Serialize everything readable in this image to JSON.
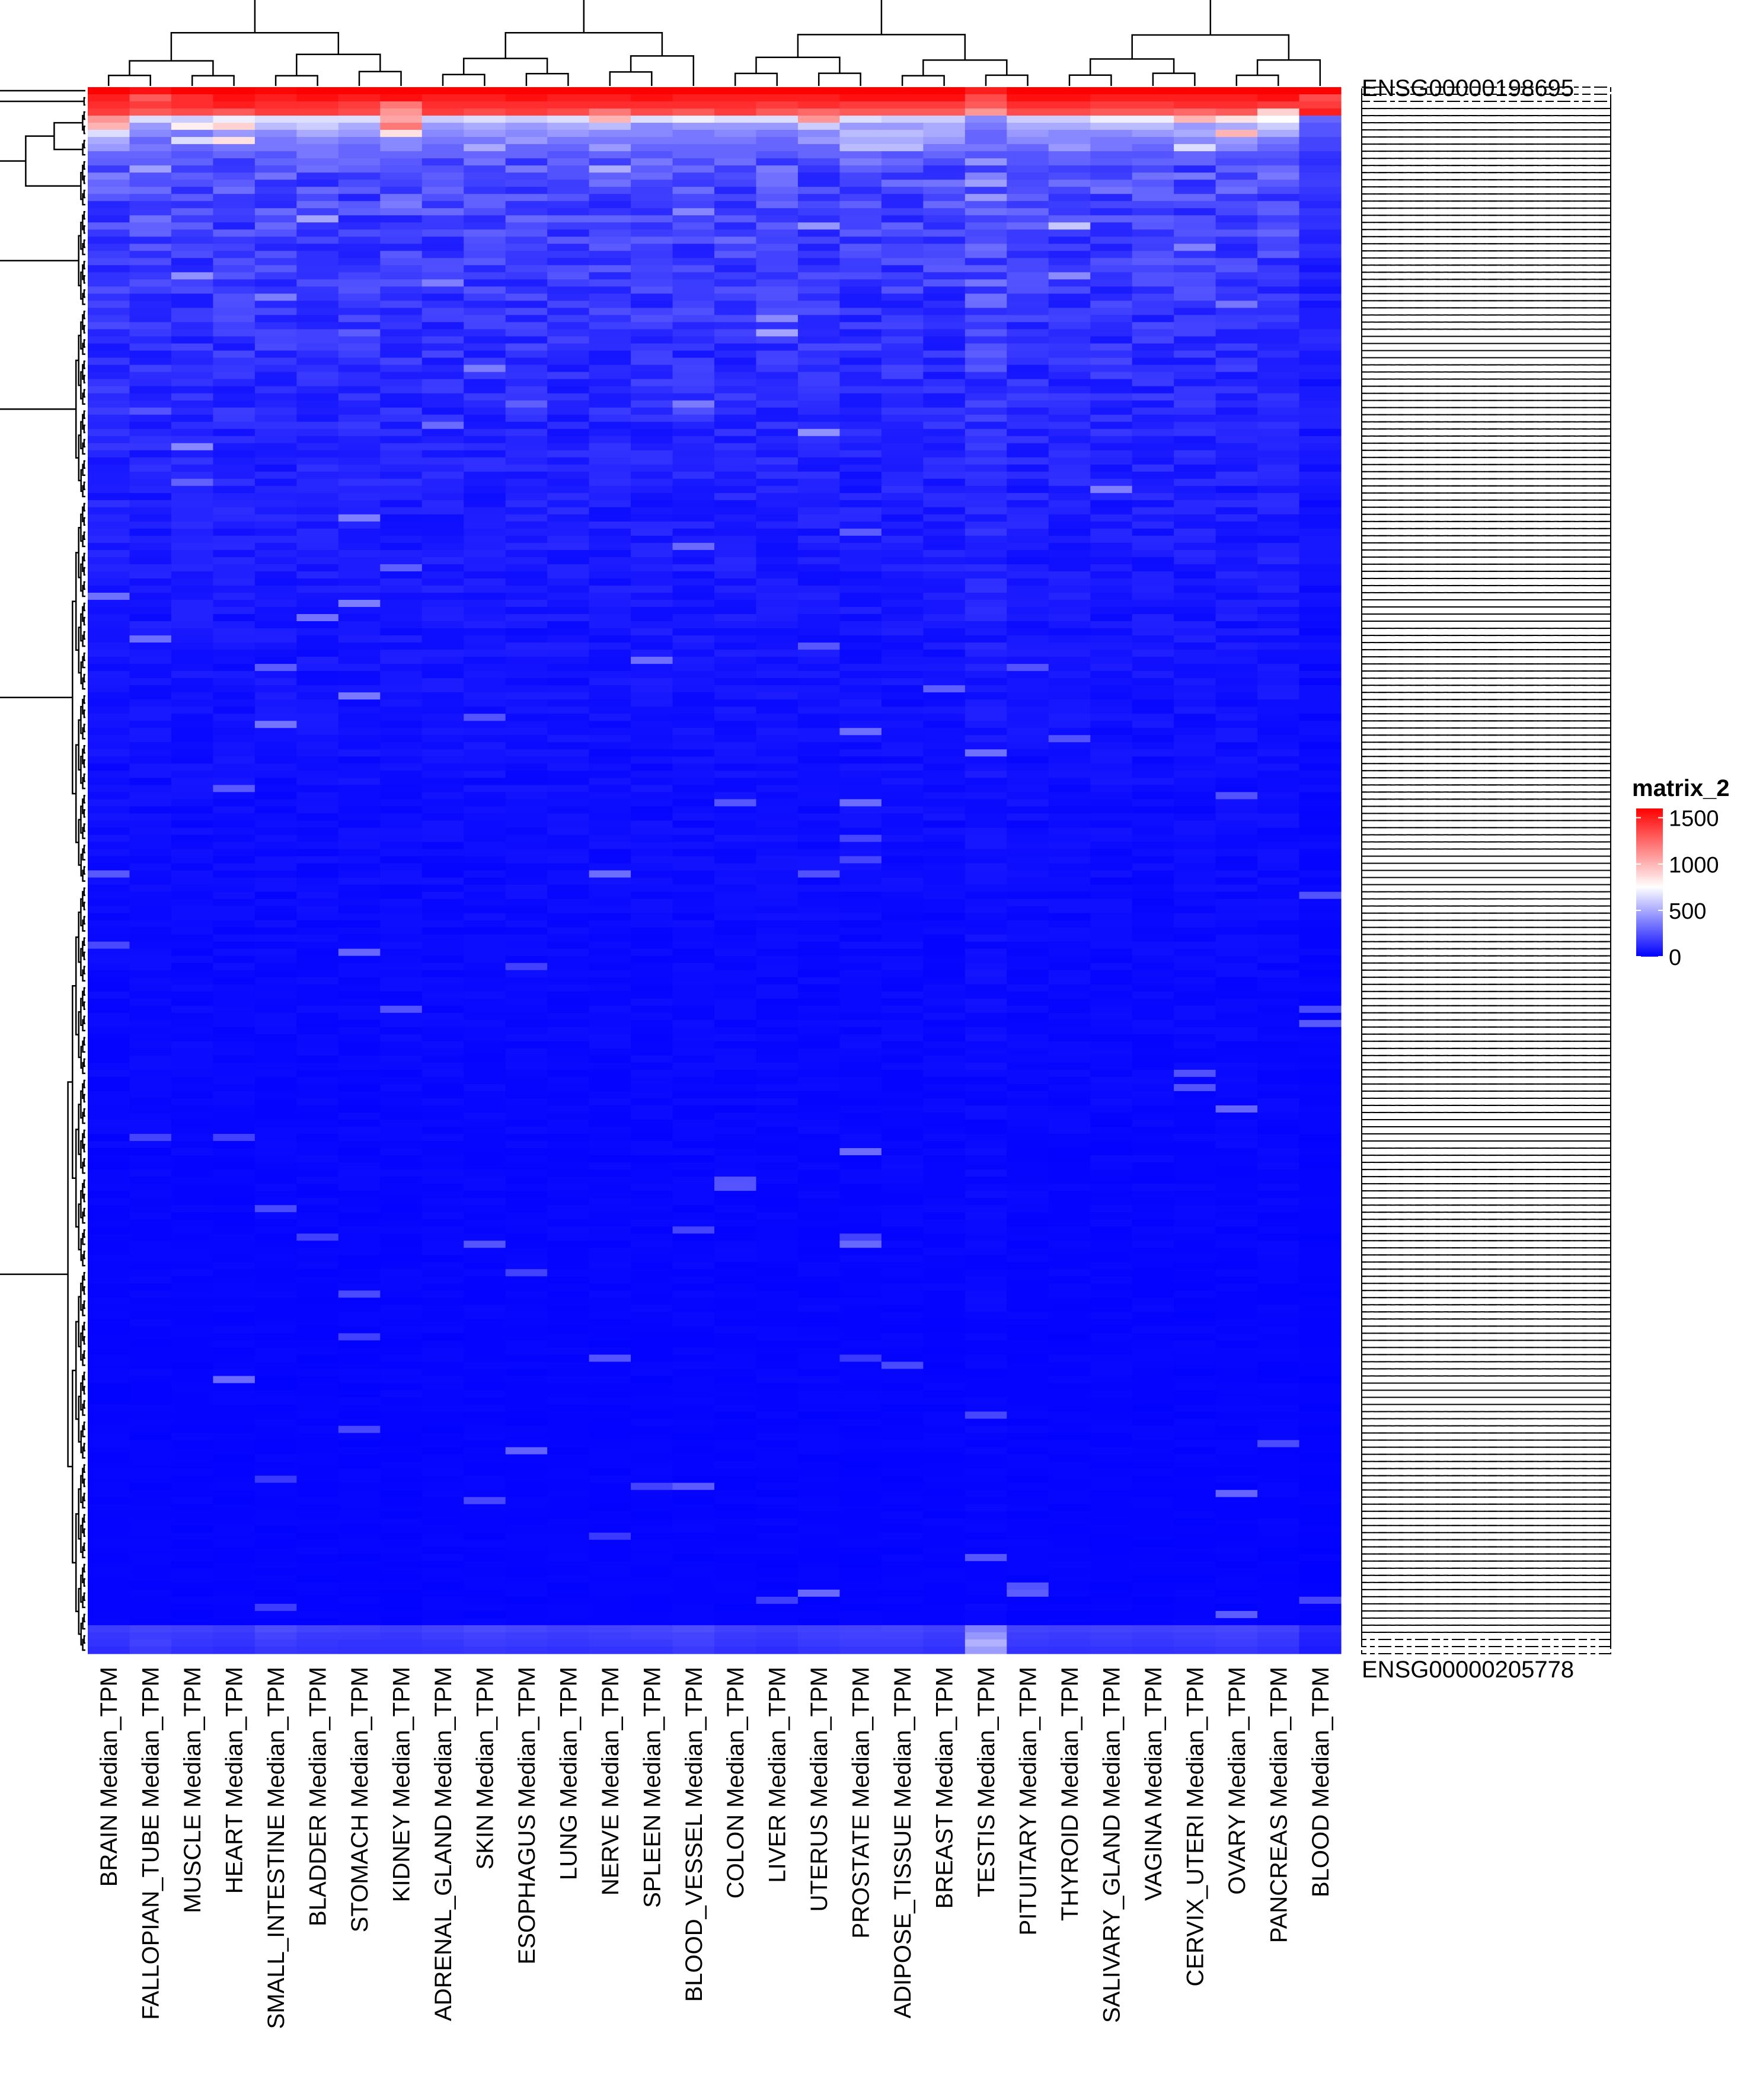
{
  "chart_data": {
    "type": "heatmap",
    "legend_title": "matrix_2",
    "legend_ticks": [
      1500,
      1000,
      500,
      0
    ],
    "value_range": [
      0,
      1600
    ],
    "legend_placement": "right",
    "colors": {
      "low": "#0000ff",
      "mid": "#ffffff",
      "high": "#ff0000"
    },
    "mid_value": 750,
    "columns": [
      "BRAIN Median_TPM",
      "FALLOPIAN_TUBE Median_TPM",
      "MUSCLE Median_TPM",
      "HEART Median_TPM",
      "SMALL_INTESTINE Median_TPM",
      "BLADDER Median_TPM",
      "STOMACH Median_TPM",
      "KIDNEY Median_TPM",
      "ADRENAL_GLAND Median_TPM",
      "SKIN Median_TPM",
      "ESOPHAGUS Median_TPM",
      "LUNG Median_TPM",
      "NERVE Median_TPM",
      "SPLEEN Median_TPM",
      "BLOOD_VESSEL Median_TPM",
      "COLON Median_TPM",
      "LIVER Median_TPM",
      "UTERUS Median_TPM",
      "PROSTATE Median_TPM",
      "ADIPOSE_TISSUE Median_TPM",
      "BREAST Median_TPM",
      "TESTIS Median_TPM",
      "PITUITARY Median_TPM",
      "THYROID Median_TPM",
      "SALIVARY_GLAND Median_TPM",
      "VAGINA Median_TPM",
      "CERVIX_UTERI Median_TPM",
      "OVARY Median_TPM",
      "PANCREAS Median_TPM",
      "BLOOD Median_TPM"
    ],
    "row_label_first": "ENSG00000198695",
    "row_label_last": "ENSG00000205778",
    "top_rows": [
      [
        1600,
        1550,
        1600,
        1600,
        1580,
        1600,
        1600,
        1600,
        1600,
        1600,
        1600,
        1600,
        1600,
        1600,
        1600,
        1600,
        1600,
        1600,
        1600,
        1600,
        1600,
        1500,
        1600,
        1600,
        1600,
        1600,
        1600,
        1600,
        1600,
        1600
      ],
      [
        1500,
        1300,
        1450,
        1550,
        1500,
        1550,
        1500,
        1550,
        1500,
        1500,
        1550,
        1500,
        1500,
        1550,
        1500,
        1500,
        1500,
        1500,
        1550,
        1550,
        1550,
        1350,
        1550,
        1550,
        1500,
        1500,
        1500,
        1500,
        1550,
        1350
      ],
      [
        1450,
        1400,
        1450,
        1500,
        1450,
        1450,
        1400,
        1200,
        1450,
        1450,
        1450,
        1450,
        1450,
        1450,
        1450,
        1450,
        1400,
        1450,
        1400,
        1400,
        1400,
        1300,
        1450,
        1450,
        1400,
        1400,
        1450,
        1450,
        1400,
        1400
      ],
      [
        1400,
        1300,
        1350,
        1300,
        1400,
        1400,
        1350,
        1100,
        1400,
        1350,
        1400,
        1350,
        1200,
        1350,
        1300,
        1400,
        1300,
        1250,
        1300,
        1300,
        1300,
        1100,
        1350,
        1350,
        1300,
        1300,
        1250,
        1300,
        900,
        1500
      ],
      [
        1100,
        650,
        600,
        700,
        650,
        650,
        650,
        1050,
        600,
        650,
        600,
        650,
        1000,
        650,
        700,
        650,
        650,
        1100,
        650,
        600,
        600,
        400,
        600,
        600,
        700,
        700,
        1000,
        850,
        750,
        300
      ],
      [
        1000,
        450,
        800,
        900,
        550,
        600,
        500,
        1200,
        450,
        500,
        450,
        500,
        550,
        400,
        450,
        450,
        450,
        600,
        450,
        450,
        500,
        350,
        500,
        500,
        550,
        550,
        450,
        500,
        600,
        250
      ],
      [
        650,
        400,
        350,
        450,
        400,
        500,
        450,
        850,
        400,
        450,
        400,
        450,
        400,
        400,
        350,
        400,
        350,
        400,
        550,
        550,
        500,
        300,
        450,
        400,
        400,
        450,
        500,
        1000,
        500,
        250
      ],
      [
        500,
        300,
        650,
        850,
        350,
        400,
        350,
        400,
        350,
        350,
        450,
        350,
        350,
        350,
        350,
        350,
        300,
        450,
        500,
        500,
        450,
        300,
        400,
        400,
        350,
        350,
        400,
        450,
        350,
        200
      ],
      [
        450,
        350,
        300,
        350,
        350,
        350,
        300,
        400,
        300,
        500,
        300,
        300,
        450,
        300,
        300,
        300,
        300,
        300,
        550,
        550,
        350,
        350,
        300,
        450,
        350,
        300,
        650,
        400,
        300,
        200
      ],
      [
        300,
        300,
        250,
        300,
        250,
        350,
        300,
        300,
        300,
        300,
        300,
        250,
        300,
        250,
        300,
        300,
        250,
        300,
        300,
        250,
        300,
        250,
        250,
        300,
        250,
        250,
        300,
        250,
        250,
        150
      ]
    ],
    "bottom_rows": [
      [
        180,
        200,
        190,
        180,
        230,
        200,
        190,
        180,
        200,
        220,
        210,
        190,
        200,
        210,
        230,
        190,
        180,
        190,
        200,
        210,
        190,
        380,
        200,
        190,
        200,
        190,
        200,
        210,
        190,
        120
      ],
      [
        160,
        180,
        170,
        160,
        200,
        170,
        170,
        160,
        180,
        190,
        180,
        170,
        180,
        190,
        200,
        170,
        160,
        180,
        190,
        190,
        170,
        440,
        180,
        170,
        180,
        170,
        180,
        190,
        170,
        100
      ],
      [
        150,
        190,
        160,
        150,
        180,
        160,
        150,
        150,
        160,
        180,
        170,
        160,
        170,
        170,
        190,
        160,
        150,
        170,
        180,
        180,
        160,
        520,
        170,
        160,
        170,
        160,
        170,
        180,
        160,
        90
      ],
      [
        130,
        170,
        140,
        130,
        160,
        150,
        140,
        140,
        150,
        160,
        150,
        140,
        150,
        150,
        170,
        140,
        130,
        150,
        160,
        160,
        140,
        460,
        150,
        140,
        150,
        140,
        150,
        160,
        140,
        80
      ]
    ]
  }
}
